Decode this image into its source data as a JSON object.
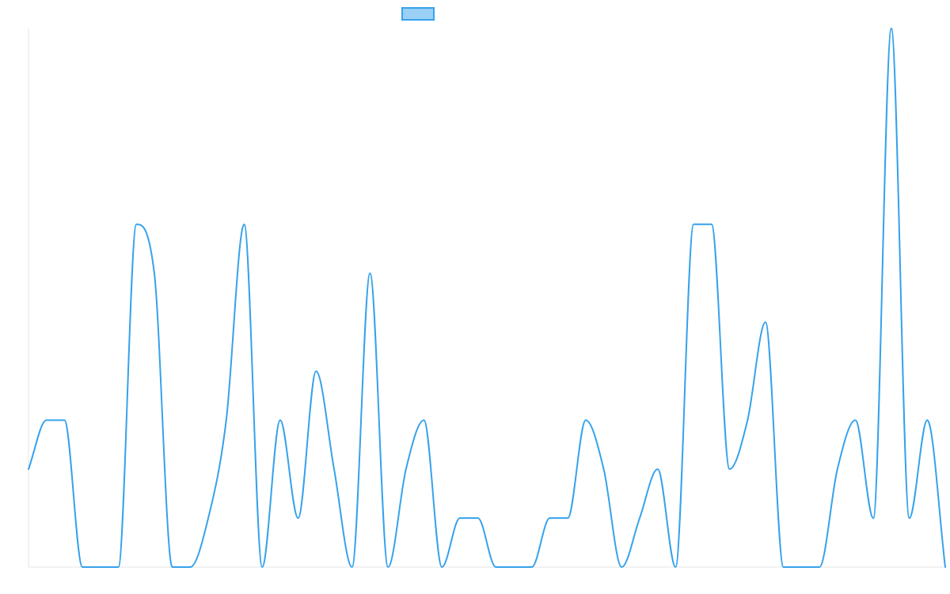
{
  "chart_data": {
    "type": "line",
    "title": "",
    "xlabel": "",
    "ylabel": "",
    "grid": false,
    "legend_position": "top-center",
    "ylim": [
      0,
      11
    ],
    "x": [
      0,
      1,
      2,
      3,
      4,
      5,
      6,
      7,
      8,
      9,
      10,
      11,
      12,
      13,
      14,
      15,
      16,
      17,
      18,
      19,
      20,
      21,
      22,
      23,
      24,
      25,
      26,
      27,
      28,
      29,
      30,
      31,
      32,
      33,
      34,
      35,
      36,
      37,
      38,
      39,
      40,
      41,
      42,
      43,
      44,
      45,
      46,
      47,
      48,
      49,
      50,
      51
    ],
    "series": [
      {
        "name": "",
        "color": "#36A2EB",
        "fill": "#9AD0F5",
        "values": [
          2,
          3,
          3,
          0,
          0,
          0,
          7,
          6,
          0,
          0,
          1,
          3,
          7,
          0,
          3,
          1,
          4,
          2,
          0,
          6,
          0,
          2,
          3,
          0,
          1,
          1,
          0,
          0,
          0,
          1,
          1,
          3,
          2,
          0,
          1,
          2,
          0,
          7,
          7,
          2,
          3,
          5,
          0,
          0,
          0,
          2,
          3,
          1,
          11,
          1,
          3,
          0
        ]
      }
    ]
  }
}
